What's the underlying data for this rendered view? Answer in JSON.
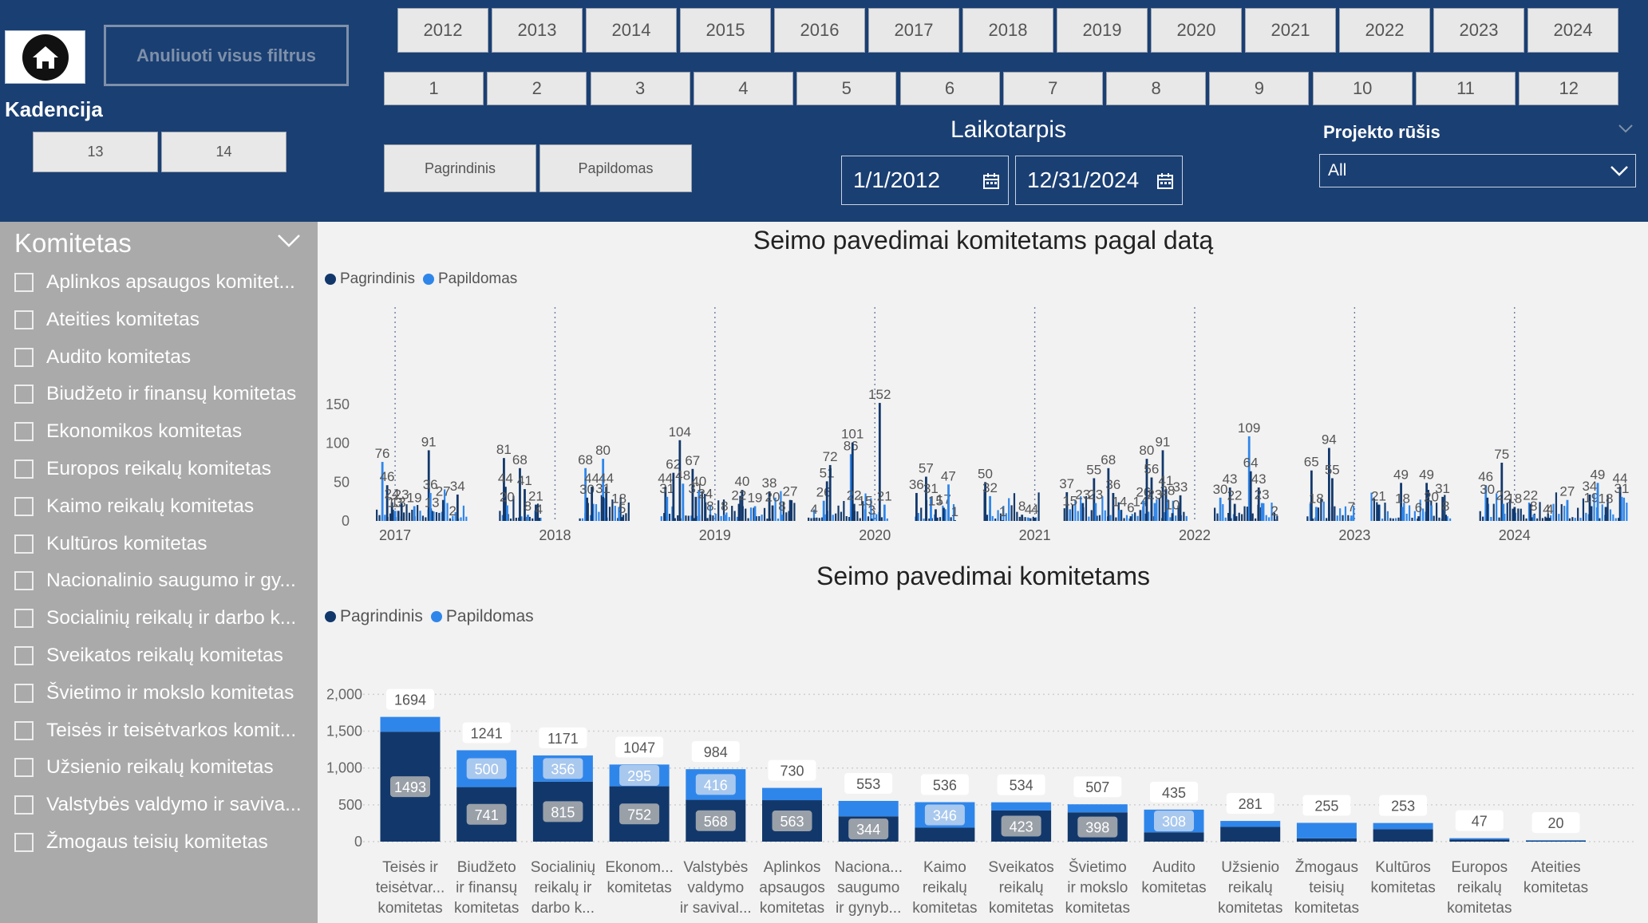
{
  "header": {
    "clear_filters_label": "Anuliuoti visus filtrus",
    "kadencija_label": "Kadencija",
    "kadencija_options": [
      "13",
      "14"
    ],
    "years": [
      "2012",
      "2013",
      "2014",
      "2015",
      "2016",
      "2017",
      "2018",
      "2019",
      "2020",
      "2021",
      "2022",
      "2023",
      "2024"
    ],
    "months": [
      "1",
      "2",
      "3",
      "4",
      "5",
      "6",
      "7",
      "8",
      "9",
      "10",
      "11",
      "12"
    ],
    "type_buttons": [
      "Pagrindinis",
      "Papildomas"
    ],
    "laikotarpis_label": "Laikotarpis",
    "date_from": "1/1/2012",
    "date_to": "12/31/2024",
    "projekto_rusis_label": "Projekto rūšis",
    "projekto_rusis_value": "All"
  },
  "sidebar": {
    "title": "Komitetas",
    "items": [
      "Aplinkos apsaugos komitet...",
      "Ateities komitetas",
      "Audito komitetas",
      "Biudžeto ir finansų komitetas",
      "Ekonomikos komitetas",
      "Europos reikalų komitetas",
      "Kaimo reikalų komitetas",
      "Kultūros komitetas",
      "Nacionalinio saugumo ir gy...",
      "Socialinių reikalų ir darbo k...",
      "Sveikatos reikalų komitetas",
      "Švietimo ir mokslo komitetas",
      "Teisės ir teisėtvarkos komit...",
      "Užsienio reikalų komitetas",
      "Valstybės valdymo ir saviva...",
      "Žmogaus teisių komitetas"
    ]
  },
  "colors": {
    "header_bg": "#1a3f73",
    "pagrindinis": "#12386b",
    "papildomas": "#2f86ea"
  },
  "chart_data": [
    {
      "type": "bar",
      "title": "Seimo pavedimai komitetams pagal datą",
      "legend": [
        "Pagrindinis",
        "Papildomas"
      ],
      "legend_position": "top-left",
      "x_ticks": [
        "2017",
        "2018",
        "2019",
        "2020",
        "2021",
        "2022",
        "2023",
        "2024"
      ],
      "y_ticks": [
        "0",
        "50",
        "100",
        "150"
      ],
      "ylim": [
        0,
        170
      ],
      "grid": false,
      "peaks": [
        {
          "t": 2016.92,
          "v": 76
        },
        {
          "t": 2016.95,
          "v": 46
        },
        {
          "t": 2016.98,
          "v": 24
        },
        {
          "t": 2017.0,
          "v": 13
        },
        {
          "t": 2017.02,
          "v": 13
        },
        {
          "t": 2017.04,
          "v": 23
        },
        {
          "t": 2017.12,
          "v": 19
        },
        {
          "t": 2017.21,
          "v": 91
        },
        {
          "t": 2017.23,
          "v": 13
        },
        {
          "t": 2017.22,
          "v": 36
        },
        {
          "t": 2017.3,
          "v": 27
        },
        {
          "t": 2017.39,
          "v": 34
        },
        {
          "t": 2017.36,
          "v": 2
        },
        {
          "t": 2017.68,
          "v": 81
        },
        {
          "t": 2017.69,
          "v": 44
        },
        {
          "t": 2017.7,
          "v": 20
        },
        {
          "t": 2017.78,
          "v": 68
        },
        {
          "t": 2017.81,
          "v": 41
        },
        {
          "t": 2017.83,
          "v": 8
        },
        {
          "t": 2017.88,
          "v": 21
        },
        {
          "t": 2017.9,
          "v": 4
        },
        {
          "t": 2018.19,
          "v": 68
        },
        {
          "t": 2018.2,
          "v": 30
        },
        {
          "t": 2018.23,
          "v": 44
        },
        {
          "t": 2018.3,
          "v": 80
        },
        {
          "t": 2018.32,
          "v": 44
        },
        {
          "t": 2018.3,
          "v": 31
        },
        {
          "t": 2018.4,
          "v": 18
        },
        {
          "t": 2018.42,
          "v": 5
        },
        {
          "t": 2018.69,
          "v": 44
        },
        {
          "t": 2018.7,
          "v": 31
        },
        {
          "t": 2018.74,
          "v": 62
        },
        {
          "t": 2018.78,
          "v": 104
        },
        {
          "t": 2018.8,
          "v": 48
        },
        {
          "t": 2018.86,
          "v": 67
        },
        {
          "t": 2018.88,
          "v": 31
        },
        {
          "t": 2018.9,
          "v": 40
        },
        {
          "t": 2018.94,
          "v": 24
        },
        {
          "t": 2018.97,
          "v": 8
        },
        {
          "t": 2019.06,
          "v": 8
        },
        {
          "t": 2019.17,
          "v": 40
        },
        {
          "t": 2019.15,
          "v": 22
        },
        {
          "t": 2019.25,
          "v": 19
        },
        {
          "t": 2019.34,
          "v": 38
        },
        {
          "t": 2019.36,
          "v": 20
        },
        {
          "t": 2019.42,
          "v": 8
        },
        {
          "t": 2019.47,
          "v": 27
        },
        {
          "t": 2019.62,
          "v": 4
        },
        {
          "t": 2019.68,
          "v": 26
        },
        {
          "t": 2019.7,
          "v": 51
        },
        {
          "t": 2019.72,
          "v": 72
        },
        {
          "t": 2019.85,
          "v": 86
        },
        {
          "t": 2019.86,
          "v": 101
        },
        {
          "t": 2019.87,
          "v": 22
        },
        {
          "t": 2019.94,
          "v": 15
        },
        {
          "t": 2019.98,
          "v": 3
        },
        {
          "t": 2020.03,
          "v": 152
        },
        {
          "t": 2020.06,
          "v": 21
        },
        {
          "t": 2020.26,
          "v": 36
        },
        {
          "t": 2020.32,
          "v": 57
        },
        {
          "t": 2020.35,
          "v": 31
        },
        {
          "t": 2020.38,
          "v": 15
        },
        {
          "t": 2020.43,
          "v": 17
        },
        {
          "t": 2020.46,
          "v": 47
        },
        {
          "t": 2020.5,
          "v": 1
        },
        {
          "t": 2020.69,
          "v": 50
        },
        {
          "t": 2020.72,
          "v": 32
        },
        {
          "t": 2020.8,
          "v": 1
        },
        {
          "t": 2020.92,
          "v": 8
        },
        {
          "t": 2020.96,
          "v": 4
        },
        {
          "t": 2021.0,
          "v": 4
        },
        {
          "t": 2021.2,
          "v": 37
        },
        {
          "t": 2021.22,
          "v": 15
        },
        {
          "t": 2021.3,
          "v": 23
        },
        {
          "t": 2021.37,
          "v": 55
        },
        {
          "t": 2021.38,
          "v": 23
        },
        {
          "t": 2021.46,
          "v": 68
        },
        {
          "t": 2021.49,
          "v": 36
        },
        {
          "t": 2021.53,
          "v": 14
        },
        {
          "t": 2021.6,
          "v": 6
        },
        {
          "t": 2021.66,
          "v": 14
        },
        {
          "t": 2021.68,
          "v": 26
        },
        {
          "t": 2021.7,
          "v": 80
        },
        {
          "t": 2021.73,
          "v": 56
        },
        {
          "t": 2021.75,
          "v": 23
        },
        {
          "t": 2021.8,
          "v": 91
        },
        {
          "t": 2021.82,
          "v": 41
        },
        {
          "t": 2021.83,
          "v": 28
        },
        {
          "t": 2021.86,
          "v": 10
        },
        {
          "t": 2021.91,
          "v": 33
        },
        {
          "t": 2022.16,
          "v": 30
        },
        {
          "t": 2022.22,
          "v": 43
        },
        {
          "t": 2022.25,
          "v": 22
        },
        {
          "t": 2022.34,
          "v": 109
        },
        {
          "t": 2022.35,
          "v": 64
        },
        {
          "t": 2022.4,
          "v": 43
        },
        {
          "t": 2022.42,
          "v": 23
        },
        {
          "t": 2022.5,
          "v": 2
        },
        {
          "t": 2022.73,
          "v": 65
        },
        {
          "t": 2022.76,
          "v": 18
        },
        {
          "t": 2022.84,
          "v": 94
        },
        {
          "t": 2022.86,
          "v": 55
        },
        {
          "t": 2022.98,
          "v": 7
        },
        {
          "t": 2023.15,
          "v": 21
        },
        {
          "t": 2023.29,
          "v": 49
        },
        {
          "t": 2023.3,
          "v": 18
        },
        {
          "t": 2023.4,
          "v": 6
        },
        {
          "t": 2023.45,
          "v": 49
        },
        {
          "t": 2023.48,
          "v": 20
        },
        {
          "t": 2023.55,
          "v": 31
        },
        {
          "t": 2023.57,
          "v": 8
        },
        {
          "t": 2023.82,
          "v": 46
        },
        {
          "t": 2023.83,
          "v": 30
        },
        {
          "t": 2023.92,
          "v": 75
        },
        {
          "t": 2023.93,
          "v": 22
        },
        {
          "t": 2024.0,
          "v": 18
        },
        {
          "t": 2024.1,
          "v": 22
        },
        {
          "t": 2024.12,
          "v": 8
        },
        {
          "t": 2024.2,
          "v": 4
        },
        {
          "t": 2024.22,
          "v": 4
        },
        {
          "t": 2024.33,
          "v": 27
        },
        {
          "t": 2024.47,
          "v": 34
        },
        {
          "t": 2024.48,
          "v": 19
        },
        {
          "t": 2024.52,
          "v": 49
        },
        {
          "t": 2024.57,
          "v": 18
        },
        {
          "t": 2024.66,
          "v": 44
        },
        {
          "t": 2024.67,
          "v": 31
        }
      ],
      "active_ranges": [
        [
          2016.88,
          2017.45
        ],
        [
          2017.65,
          2017.92
        ],
        [
          2018.15,
          2018.47
        ],
        [
          2018.66,
          2019.5
        ],
        [
          2019.58,
          2020.08
        ],
        [
          2020.25,
          2020.5
        ],
        [
          2020.68,
          2021.02
        ],
        [
          2021.18,
          2021.95
        ],
        [
          2022.12,
          2022.52
        ],
        [
          2022.7,
          2023.0
        ],
        [
          2023.1,
          2023.6
        ],
        [
          2023.78,
          2024.7
        ]
      ],
      "x_range": [
        2016.8,
        2024.7
      ]
    },
    {
      "type": "bar",
      "stacked": true,
      "title": "Seimo pavedimai komitetams",
      "legend": [
        "Pagrindinis",
        "Papildomas"
      ],
      "legend_position": "top-left",
      "y_ticks": [
        "0",
        "500",
        "1,000",
        "1,500",
        "2,000"
      ],
      "ylim": [
        0,
        2000
      ],
      "grid": true,
      "categories": [
        [
          "Teisės ir",
          "teisėtvar...",
          "komitetas"
        ],
        [
          "Biudžeto",
          "ir finansų",
          "komitetas"
        ],
        [
          "Socialinių",
          "reikalų ir",
          "darbo k..."
        ],
        [
          "Ekonom...",
          "komitetas"
        ],
        [
          "Valstybės",
          "valdymo",
          "ir savival..."
        ],
        [
          "Aplinkos",
          "apsaugos",
          "komitetas"
        ],
        [
          "Naciona...",
          "saugumo",
          "ir gynyb..."
        ],
        [
          "Kaimo",
          "reikalų",
          "komitetas"
        ],
        [
          "Sveikatos",
          "reikalų",
          "komitetas"
        ],
        [
          "Švietimo",
          "ir mokslo",
          "komitetas"
        ],
        [
          "Audito",
          "komitetas"
        ],
        [
          "Užsienio",
          "reikalų",
          "komitetas"
        ],
        [
          "Žmogaus",
          "teisių",
          "komitetas"
        ],
        [
          "Kultūros",
          "komitetas"
        ],
        [
          "Europos",
          "reikalų",
          "komitetas"
        ],
        [
          "Ateities",
          "komitetas"
        ]
      ],
      "totals": [
        1694,
        1241,
        1171,
        1047,
        984,
        730,
        553,
        536,
        534,
        507,
        435,
        281,
        255,
        253,
        47,
        20
      ],
      "series": [
        {
          "name": "Pagrindinis",
          "values": [
            1493,
            741,
            815,
            752,
            568,
            563,
            344,
            190,
            423,
            398,
            127,
            200,
            45,
            170,
            30,
            12
          ]
        },
        {
          "name": "Papildomas",
          "values": [
            201,
            500,
            356,
            295,
            416,
            167,
            209,
            346,
            111,
            109,
            308,
            81,
            210,
            83,
            17,
            8
          ]
        }
      ],
      "segment_labels": [
        [
          "1493",
          null
        ],
        [
          "741",
          "500"
        ],
        [
          "815",
          "356"
        ],
        [
          "752",
          "295"
        ],
        [
          "568",
          "416"
        ],
        [
          "563",
          null
        ],
        [
          "344",
          null
        ],
        [
          null,
          "346"
        ],
        [
          "423",
          null
        ],
        [
          "398",
          null
        ],
        [
          null,
          "308"
        ],
        [
          null,
          null
        ],
        [
          null,
          null
        ],
        [
          null,
          null
        ],
        [
          null,
          null
        ],
        [
          null,
          null
        ]
      ]
    }
  ]
}
